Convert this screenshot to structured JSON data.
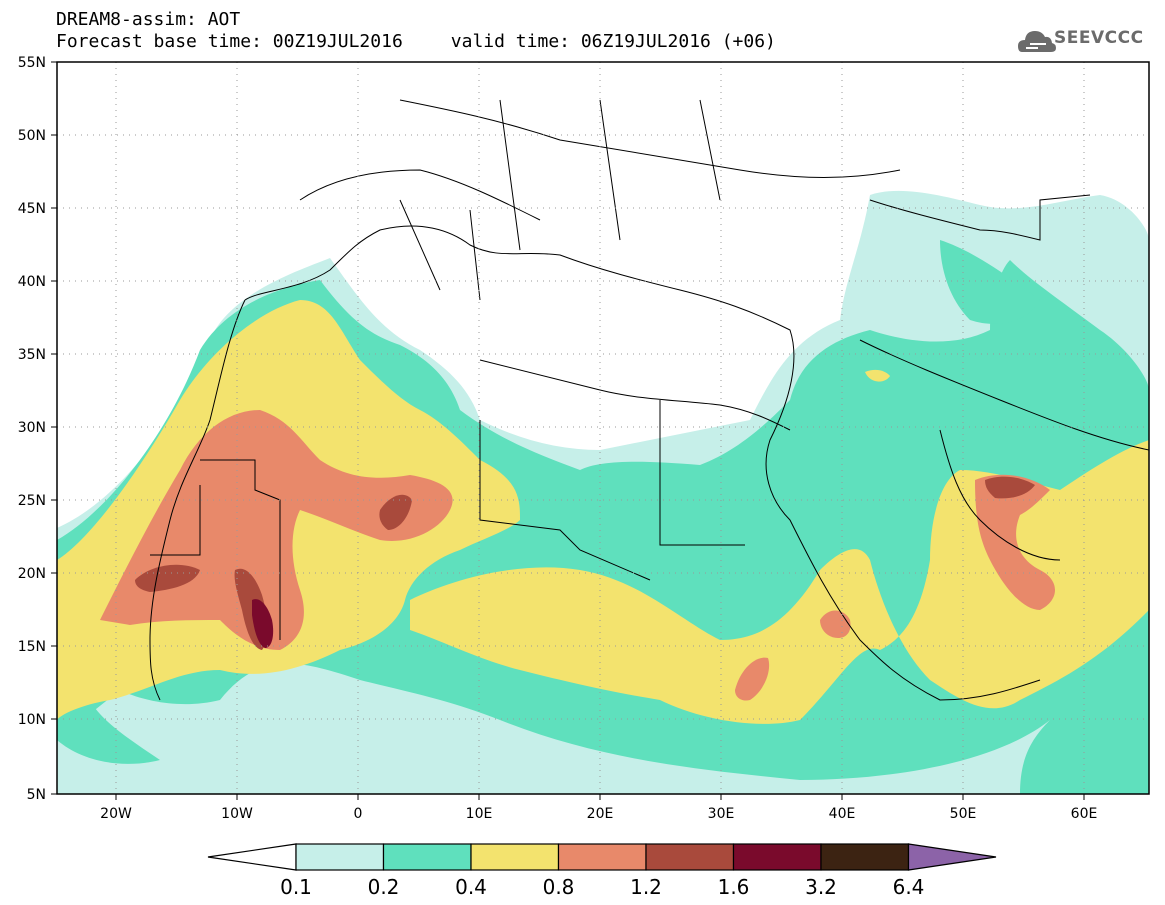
{
  "header": {
    "title": "DREAM8-assim: AOT",
    "forecast_base": "Forecast base time: 00Z19JUL2016",
    "valid_time": "valid time: 06Z19JUL2016 (+06)"
  },
  "logo": {
    "text": "SEEVCCC",
    "icon": "cloud-logo-icon"
  },
  "axes": {
    "lat_labels": [
      "55N",
      "50N",
      "45N",
      "40N",
      "35N",
      "30N",
      "25N",
      "20N",
      "15N",
      "10N",
      "5N"
    ],
    "lon_labels": [
      "20W",
      "10W",
      "0",
      "10E",
      "20E",
      "30E",
      "40E",
      "50E",
      "60E"
    ]
  },
  "colorbar": {
    "labels": [
      "0.1",
      "0.2",
      "0.4",
      "0.8",
      "1.2",
      "1.6",
      "3.2",
      "6.4"
    ],
    "colors": [
      "#c6efe9",
      "#5fe0bd",
      "#f3e36e",
      "#e8896a",
      "#a94a3c",
      "#7a0a2c",
      "#3c2312",
      "#8c63a8"
    ]
  }
}
